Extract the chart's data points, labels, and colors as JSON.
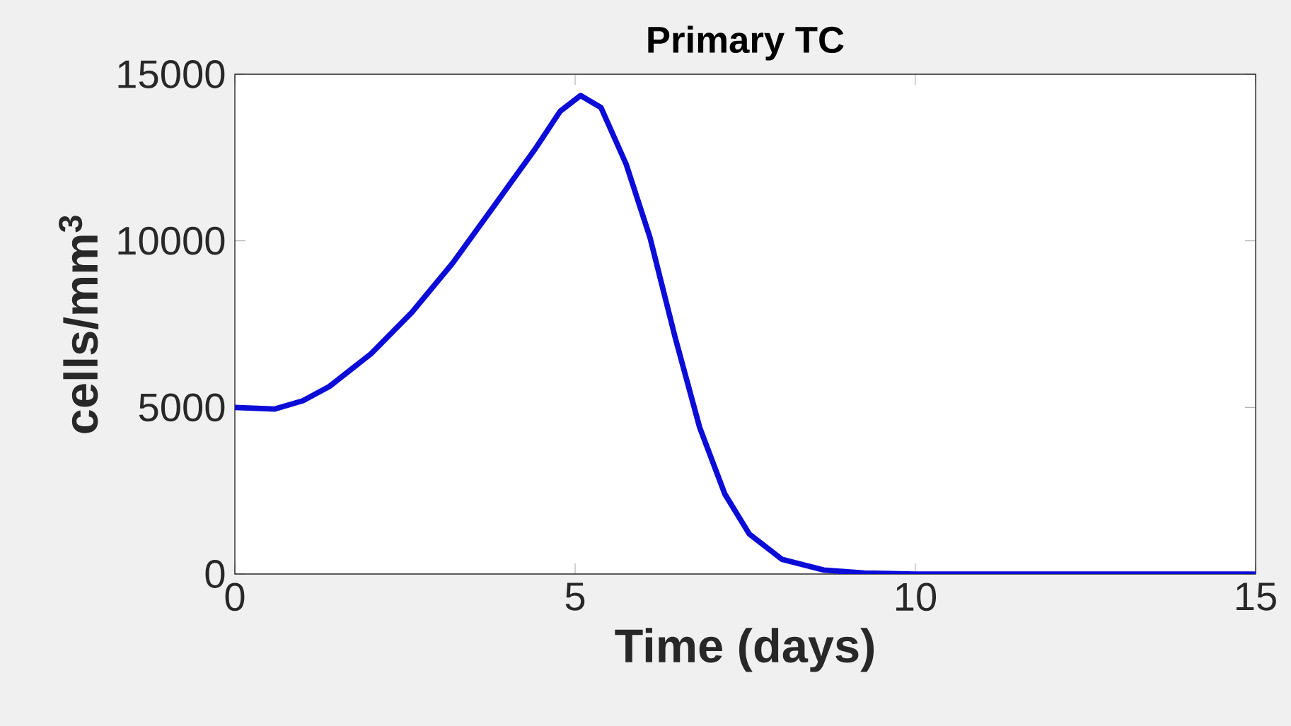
{
  "chart_data": {
    "type": "line",
    "title": "**Primary TC**",
    "xlabel": "**Time (days)**",
    "ylabel": "**cells/mm$^{3}$**",
    "xlim": [
      0,
      15
    ],
    "ylim": [
      0,
      15000
    ],
    "xticks": [
      0,
      5,
      10,
      15
    ],
    "yticks": [
      0,
      5000,
      10000,
      15000
    ],
    "grid": false,
    "marker": "none",
    "line_style": "solid",
    "x": [
      0,
      0.58,
      1.0,
      1.39,
      2.0,
      2.6,
      3.2,
      3.81,
      4.42,
      4.78,
      5.08,
      5.38,
      5.75,
      6.1,
      6.47,
      6.83,
      7.2,
      7.56,
      8.04,
      8.65,
      9.25,
      10,
      12,
      15
    ],
    "series": [
      {
        "color": "#0c0cd8",
        "values": [
          5000,
          4950,
          5200,
          5630,
          6610,
          7850,
          9330,
          11050,
          12780,
          13890,
          14360,
          14000,
          12300,
          10100,
          7100,
          4400,
          2400,
          1200,
          440,
          120,
          30,
          0,
          0,
          0
        ]
      }
    ]
  }
}
